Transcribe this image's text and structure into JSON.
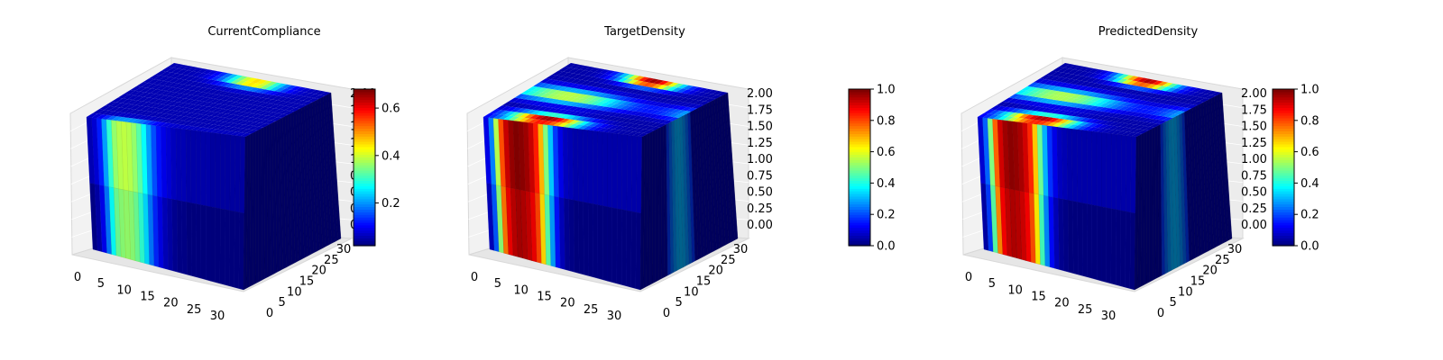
{
  "chart_data": [
    {
      "type": "voxel3d",
      "title": "CurrentCompliance",
      "colormap": "jet",
      "x_ticks": [
        0,
        5,
        10,
        15,
        20,
        25,
        30
      ],
      "y_ticks": [
        0,
        5,
        10,
        15,
        20,
        25,
        30
      ],
      "z_ticks": [
        "0.00",
        "0.25",
        "0.50",
        "0.75",
        "1.00",
        "1.25",
        "1.50",
        "1.75",
        "2.00"
      ],
      "colorbar": {
        "vmin": 0.02,
        "vmax": 0.68,
        "ticks": [
          "0.2",
          "0.4",
          "0.6"
        ]
      },
      "front_profile": [
        0.05,
        0.08,
        0.15,
        0.28,
        0.42,
        0.52,
        0.55,
        0.56,
        0.55,
        0.52,
        0.46,
        0.38,
        0.28,
        0.2,
        0.14,
        0.1,
        0.08,
        0.06,
        0.05,
        0.05,
        0.04,
        0.04,
        0.04,
        0.04,
        0.04,
        0.03,
        0.03,
        0.03,
        0.03,
        0.03,
        0.03,
        0.03
      ],
      "top_hotspot_strength": 0.68
    },
    {
      "type": "voxel3d",
      "title": "TargetDensity",
      "colormap": "jet",
      "x_ticks": [
        0,
        5,
        10,
        15,
        20,
        25,
        30
      ],
      "y_ticks": [
        0,
        5,
        10,
        15,
        20,
        25,
        30
      ],
      "z_ticks": [
        "0.00",
        "0.25",
        "0.50",
        "0.75",
        "1.00",
        "1.25",
        "1.50",
        "1.75",
        "2.00"
      ],
      "colorbar": {
        "vmin": 0.0,
        "vmax": 1.0,
        "ticks": [
          "0.0",
          "0.2",
          "0.4",
          "0.6",
          "0.8",
          "1.0"
        ]
      },
      "front_profile": [
        0.1,
        0.25,
        0.55,
        0.8,
        0.93,
        0.98,
        1.0,
        0.99,
        0.97,
        0.93,
        0.85,
        0.7,
        0.5,
        0.32,
        0.18,
        0.1,
        0.06,
        0.05,
        0.04,
        0.04,
        0.04,
        0.04,
        0.04,
        0.04,
        0.04,
        0.04,
        0.04,
        0.04,
        0.04,
        0.04,
        0.04,
        0.04
      ],
      "top_hotspot_strength": 1.0
    },
    {
      "type": "voxel3d",
      "title": "PredictedDensity",
      "colormap": "jet",
      "x_ticks": [
        0,
        5,
        10,
        15,
        20,
        25,
        30
      ],
      "y_ticks": [
        0,
        5,
        10,
        15,
        20,
        25,
        30
      ],
      "z_ticks": [
        "0.00",
        "0.25",
        "0.50",
        "0.75",
        "1.00",
        "1.25",
        "1.50",
        "1.75",
        "2.00"
      ],
      "colorbar": {
        "vmin": 0.0,
        "vmax": 1.0,
        "ticks": [
          "0.0",
          "0.2",
          "0.4",
          "0.6",
          "0.8",
          "1.0"
        ]
      },
      "front_profile": [
        0.08,
        0.22,
        0.5,
        0.78,
        0.92,
        0.97,
        0.99,
        0.98,
        0.96,
        0.92,
        0.84,
        0.68,
        0.48,
        0.3,
        0.17,
        0.1,
        0.06,
        0.05,
        0.04,
        0.04,
        0.04,
        0.04,
        0.04,
        0.04,
        0.04,
        0.04,
        0.04,
        0.04,
        0.04,
        0.04,
        0.04,
        0.04
      ],
      "top_hotspot_strength": 0.98
    }
  ]
}
